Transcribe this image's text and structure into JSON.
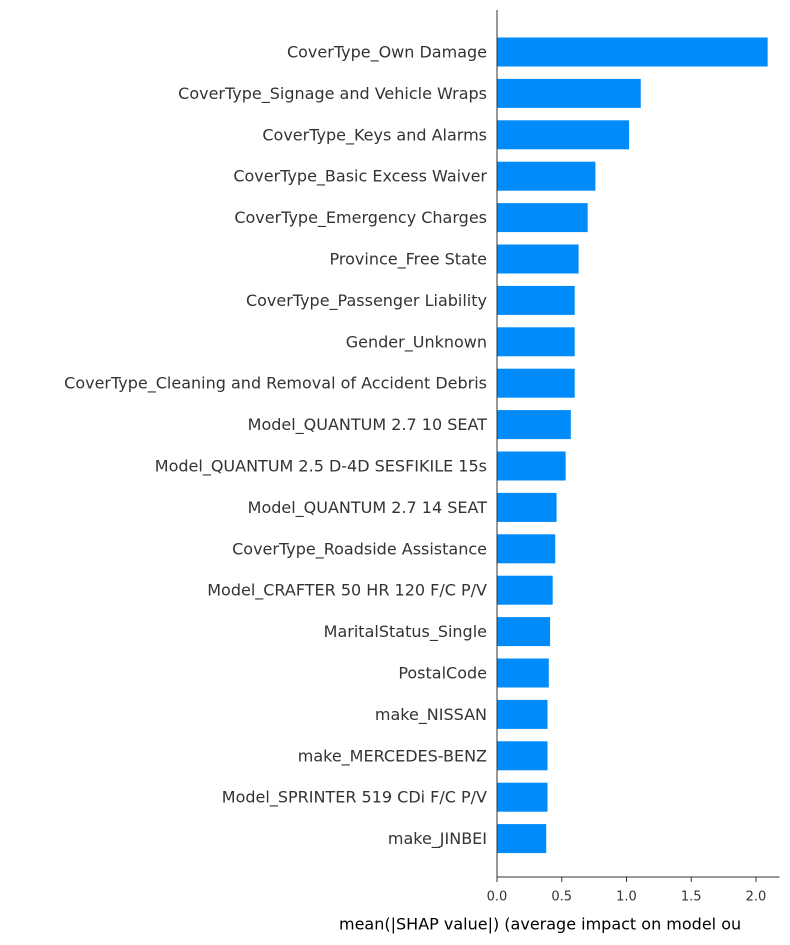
{
  "colors": {
    "bar": "#008bfb",
    "axis": "#333333",
    "label": "#333333",
    "background": "#ffffff"
  },
  "chart_data": {
    "type": "bar",
    "orientation": "horizontal",
    "xlabel": "mean(|SHAP value|) (average impact on model ou",
    "xlim": [
      0,
      2.18
    ],
    "xticks": [
      0.0,
      0.5,
      1.0,
      1.5,
      2.0
    ],
    "xtick_labels": [
      "0.0",
      "0.5",
      "1.0",
      "1.5",
      "2.0"
    ],
    "grid": false,
    "categories": [
      "CoverType_Own Damage",
      "CoverType_Signage and Vehicle Wraps",
      "CoverType_Keys and Alarms",
      "CoverType_Basic Excess Waiver",
      "CoverType_Emergency Charges",
      "Province_Free State",
      "CoverType_Passenger Liability",
      "Gender_Unknown",
      "CoverType_Cleaning and Removal of Accident Debris",
      "Model_QUANTUM 2.7 10 SEAT",
      "Model_QUANTUM 2.5 D-4D SESFIKILE 15s",
      "Model_QUANTUM 2.7 14 SEAT",
      "CoverType_Roadside Assistance",
      "Model_CRAFTER 50 HR 120 F/C P/V",
      "MaritalStatus_Single",
      "PostalCode",
      "make_NISSAN",
      "make_MERCEDES-BENZ",
      "Model_SPRINTER 519 CDi F/C P/V",
      "make_JINBEI"
    ],
    "values": [
      2.09,
      1.11,
      1.02,
      0.76,
      0.7,
      0.63,
      0.6,
      0.6,
      0.6,
      0.57,
      0.53,
      0.46,
      0.45,
      0.43,
      0.41,
      0.4,
      0.39,
      0.39,
      0.39,
      0.38
    ]
  }
}
